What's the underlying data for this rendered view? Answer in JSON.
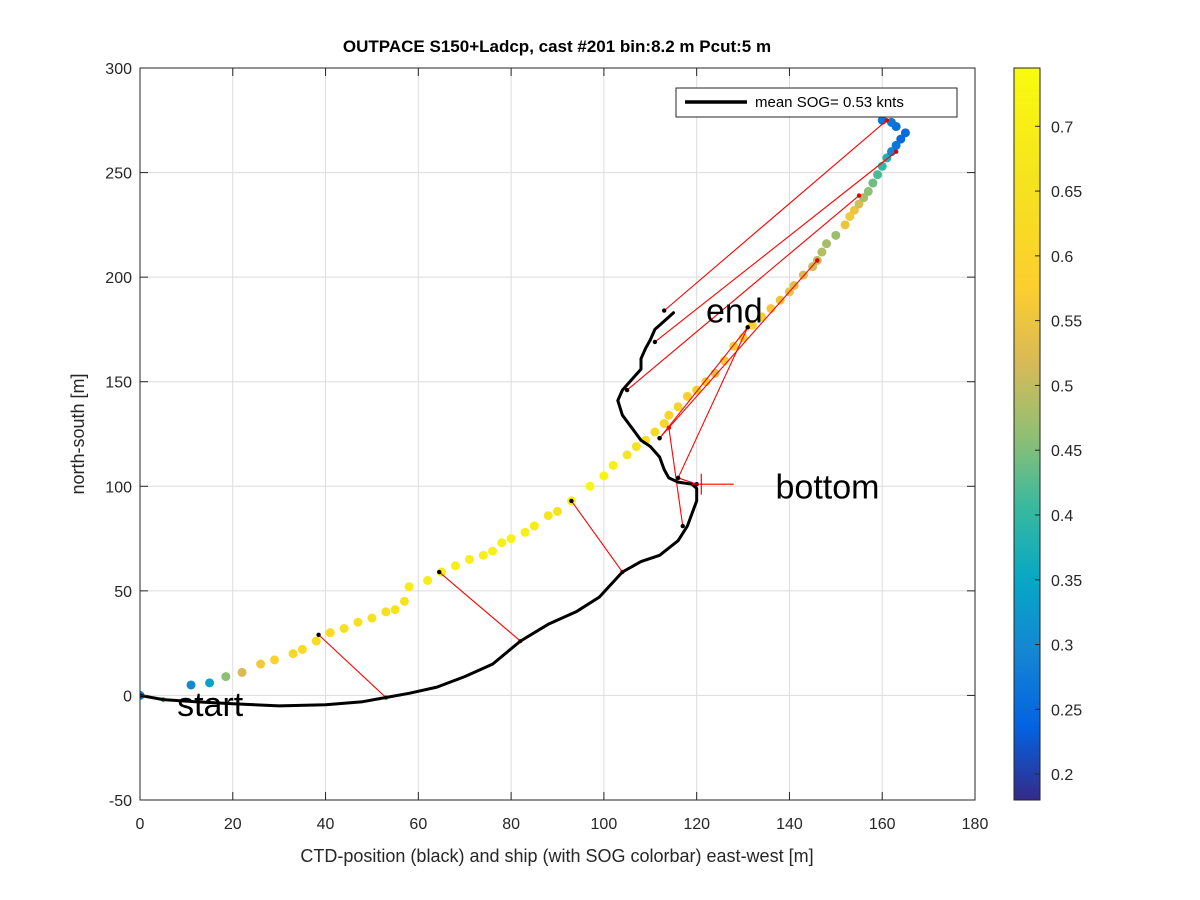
{
  "chart_data": {
    "type": "scatter",
    "title": "OUTPACE S150+Ladcp, cast #201 bin:8.2 m  Pcut:5 m",
    "xlabel": "CTD-position (black) and ship (with SOG colorbar) east-west [m]",
    "ylabel": "north-south [m]",
    "xlim": [
      0,
      180
    ],
    "ylim": [
      -50,
      300
    ],
    "xticks": [
      0,
      20,
      40,
      60,
      80,
      100,
      120,
      140,
      160,
      180
    ],
    "yticks": [
      -50,
      0,
      50,
      100,
      150,
      200,
      250,
      300
    ],
    "grid": true,
    "legend": {
      "location": "top-right",
      "entries": [
        "mean SOG=  0.53 knts"
      ]
    },
    "colorbar": {
      "location": "right",
      "range": [
        0.18,
        0.745
      ],
      "ticks": [
        0.2,
        0.25,
        0.3,
        0.35,
        0.4,
        0.45,
        0.5,
        0.55,
        0.6,
        0.65,
        0.7
      ],
      "colormap": "parula"
    },
    "annotations": [
      {
        "text": "start",
        "x": 8,
        "y": -4
      },
      {
        "text": "bottom",
        "x": 137,
        "y": 100
      },
      {
        "text": "end",
        "x": 122,
        "y": 184
      }
    ],
    "ctd_track": {
      "color": "#000000",
      "points": [
        [
          0,
          0
        ],
        [
          5,
          -2
        ],
        [
          12,
          -3
        ],
        [
          20,
          -4
        ],
        [
          30,
          -5
        ],
        [
          40,
          -4.5
        ],
        [
          48,
          -3
        ],
        [
          53,
          -1
        ],
        [
          58,
          1
        ],
        [
          64,
          4
        ],
        [
          70,
          9
        ],
        [
          76,
          15
        ],
        [
          82,
          26
        ],
        [
          88,
          34
        ],
        [
          94,
          40
        ],
        [
          99,
          47
        ],
        [
          104,
          59
        ],
        [
          108,
          64
        ],
        [
          112,
          67
        ],
        [
          116,
          74
        ],
        [
          118,
          81
        ],
        [
          119,
          87
        ],
        [
          120,
          93
        ],
        [
          120,
          99
        ],
        [
          119,
          101
        ],
        [
          116,
          102
        ],
        [
          114,
          104
        ],
        [
          113,
          108
        ],
        [
          112,
          114
        ],
        [
          110,
          119
        ],
        [
          108,
          122
        ],
        [
          106,
          128
        ],
        [
          104,
          134
        ],
        [
          103,
          141
        ],
        [
          104,
          146
        ],
        [
          106,
          151
        ],
        [
          108,
          156
        ],
        [
          108,
          161
        ],
        [
          109,
          166
        ],
        [
          110,
          170
        ],
        [
          111,
          175
        ],
        [
          113,
          179
        ],
        [
          115,
          183
        ]
      ]
    },
    "ship_track": {
      "points": [
        [
          0,
          0,
          0.27
        ],
        [
          11,
          5,
          0.3
        ],
        [
          15,
          6,
          0.34
        ],
        [
          18.5,
          9,
          0.46
        ],
        [
          22,
          11,
          0.52
        ],
        [
          26,
          15,
          0.56
        ],
        [
          29,
          17,
          0.59
        ],
        [
          33,
          20,
          0.61
        ],
        [
          35,
          22,
          0.62
        ],
        [
          38,
          26,
          0.63
        ],
        [
          41,
          30,
          0.63
        ],
        [
          44,
          32,
          0.64
        ],
        [
          47,
          35,
          0.64
        ],
        [
          50,
          37,
          0.65
        ],
        [
          53,
          40,
          0.65
        ],
        [
          55,
          41,
          0.66
        ],
        [
          57,
          45,
          0.66
        ],
        [
          58,
          52,
          0.69
        ],
        [
          62,
          55,
          0.69
        ],
        [
          65,
          59,
          0.69
        ],
        [
          68,
          62,
          0.7
        ],
        [
          71,
          65,
          0.7
        ],
        [
          74,
          67,
          0.7
        ],
        [
          76,
          69,
          0.7
        ],
        [
          78,
          73,
          0.7
        ],
        [
          80,
          75,
          0.71
        ],
        [
          83,
          78,
          0.7
        ],
        [
          85,
          81,
          0.69
        ],
        [
          88,
          86,
          0.67
        ],
        [
          90,
          88,
          0.66
        ],
        [
          93,
          93,
          0.7
        ],
        [
          97,
          100,
          0.73
        ],
        [
          100,
          105,
          0.72
        ],
        [
          102,
          110,
          0.7
        ],
        [
          105,
          115,
          0.67
        ],
        [
          107,
          119,
          0.66
        ],
        [
          109,
          122,
          0.64
        ],
        [
          111,
          126,
          0.62
        ],
        [
          113,
          130,
          0.61
        ],
        [
          114,
          134,
          0.6
        ],
        [
          116,
          138,
          0.59
        ],
        [
          118,
          143,
          0.58
        ],
        [
          120,
          146,
          0.57
        ],
        [
          122,
          150,
          0.56
        ],
        [
          124,
          154,
          0.53
        ],
        [
          126,
          160,
          0.56
        ],
        [
          128,
          167,
          0.57
        ],
        [
          130,
          171,
          0.58
        ],
        [
          132,
          177,
          0.58
        ],
        [
          134,
          181,
          0.57
        ],
        [
          136,
          185,
          0.56
        ],
        [
          138,
          189,
          0.55
        ],
        [
          140,
          193,
          0.54
        ],
        [
          141,
          196,
          0.53
        ],
        [
          143,
          201,
          0.52
        ],
        [
          145,
          205,
          0.51
        ],
        [
          146,
          208,
          0.5
        ],
        [
          147,
          212,
          0.49
        ],
        [
          148,
          216,
          0.48
        ],
        [
          150,
          220,
          0.47
        ],
        [
          152,
          225,
          0.55
        ],
        [
          153,
          229,
          0.56
        ],
        [
          154,
          232,
          0.55
        ],
        [
          155,
          235,
          0.52
        ],
        [
          156,
          238,
          0.48
        ],
        [
          157,
          241,
          0.46
        ],
        [
          158,
          245,
          0.44
        ],
        [
          159,
          249,
          0.42
        ],
        [
          160,
          253,
          0.4
        ],
        [
          161,
          257,
          0.38
        ],
        [
          162,
          260,
          0.3
        ],
        [
          163,
          263,
          0.27
        ],
        [
          164,
          266,
          0.25
        ],
        [
          165,
          269,
          0.25
        ],
        [
          163,
          272,
          0.26
        ],
        [
          162,
          274,
          0.27
        ],
        [
          160,
          275,
          0.27
        ]
      ]
    },
    "connectors": {
      "color": "#ff0000",
      "pairs": [
        [
          0,
          0,
          5,
          -2
        ],
        [
          38.5,
          29,
          53,
          -1
        ],
        [
          64.5,
          59,
          82,
          26
        ],
        [
          93,
          93,
          104,
          59
        ],
        [
          117,
          81,
          114,
          128
        ],
        [
          120,
          101,
          116,
          104
        ],
        [
          116,
          104,
          131,
          176
        ],
        [
          131,
          176,
          112,
          123
        ],
        [
          112,
          123,
          146,
          208
        ],
        [
          105,
          146,
          155,
          239
        ],
        [
          111,
          169,
          163,
          260
        ],
        [
          113,
          184,
          161,
          275
        ]
      ]
    }
  }
}
